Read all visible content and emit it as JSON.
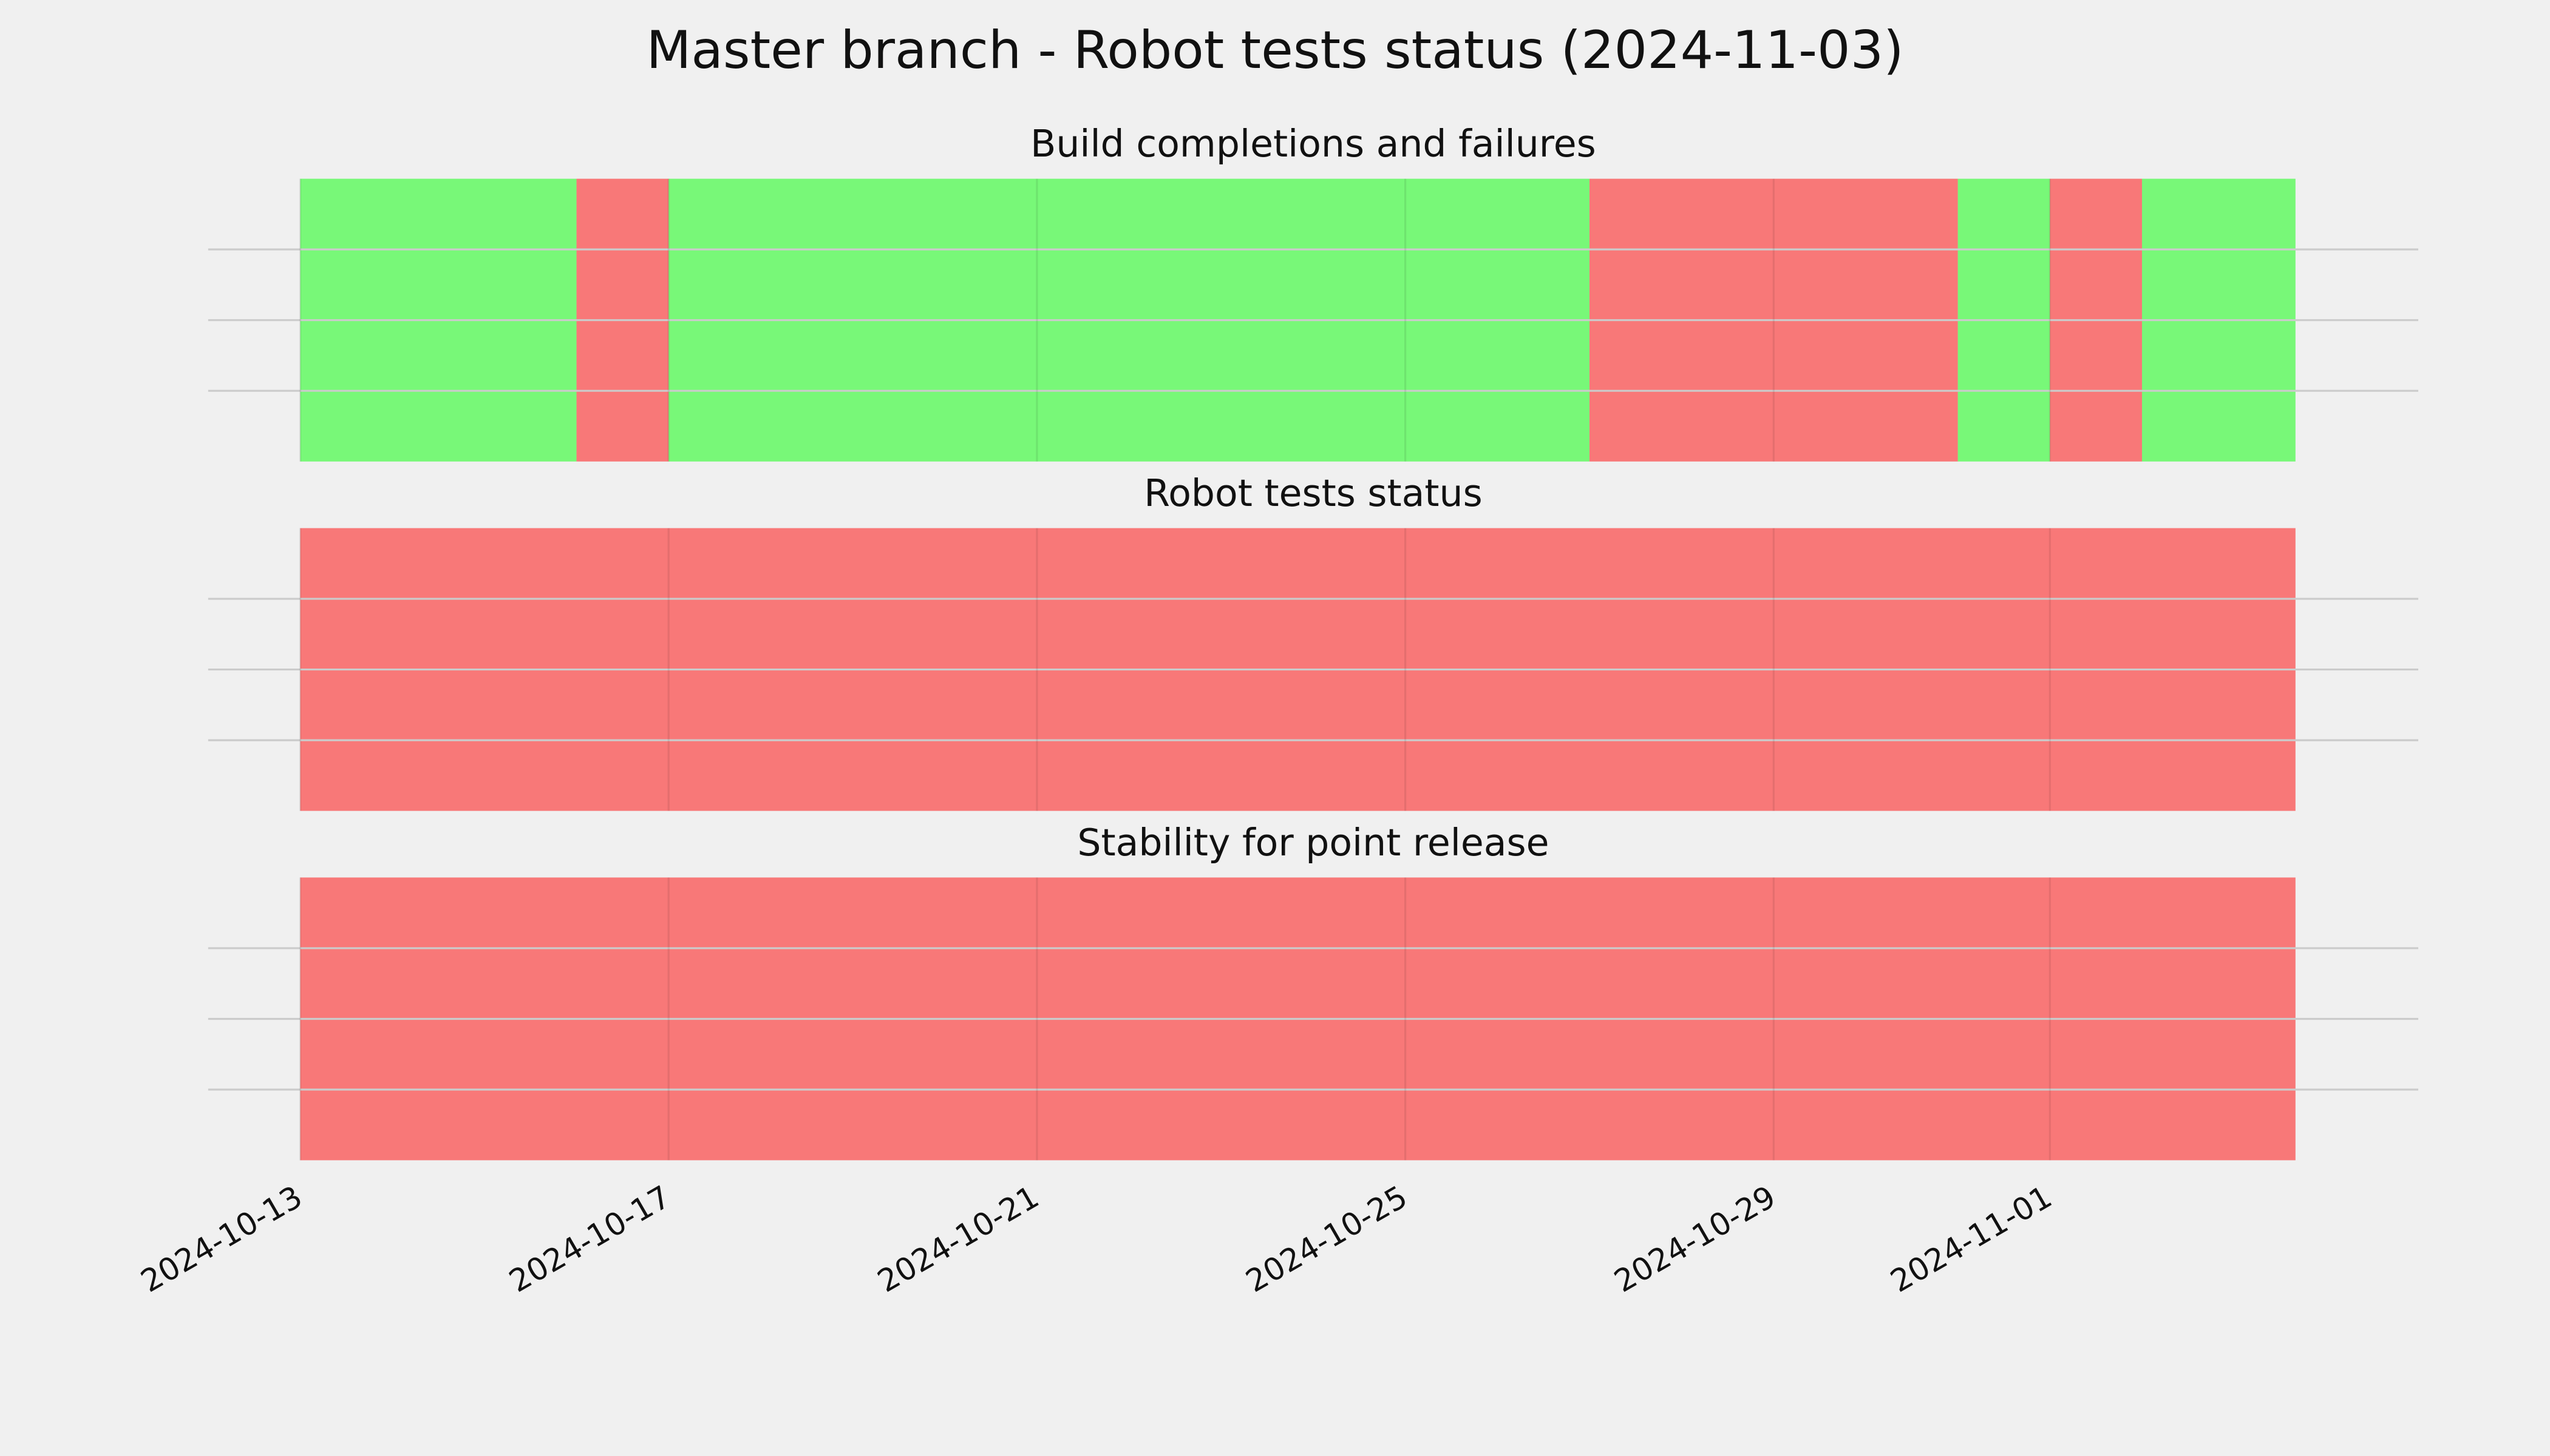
{
  "chart_data": {
    "type": "timeline",
    "title": "Master branch - Robot tests status (2024-11-03)",
    "xlim": [
      "2024-10-12",
      "2024-11-05"
    ],
    "xticks": [
      "2024-10-13",
      "2024-10-17",
      "2024-10-21",
      "2024-10-25",
      "2024-10-29",
      "2024-11-01"
    ],
    "grid": true,
    "alpha": 0.5,
    "panels": [
      {
        "title": "Build completions and failures",
        "bins": [
          "2024-10-13",
          "2024-10-16",
          "2024-10-17",
          "2024-10-27",
          "2024-10-31",
          "2024-11-01",
          "2024-11-02",
          "2024-11-03T16:00"
        ],
        "colors": [
          "#00ff00",
          "#ff0000",
          "#00ff00",
          "#ff0000",
          "#00ff00",
          "#ff0000",
          "#00ff00"
        ]
      },
      {
        "title": "Robot tests status",
        "bins": [
          "2024-10-13",
          "2024-11-03T16:00"
        ],
        "colors": [
          "#ff0000"
        ]
      },
      {
        "title": "Stability for point release",
        "bins": [
          "2024-10-13",
          "2024-11-03T16:00"
        ],
        "colors": [
          "#ff0000"
        ]
      }
    ]
  }
}
